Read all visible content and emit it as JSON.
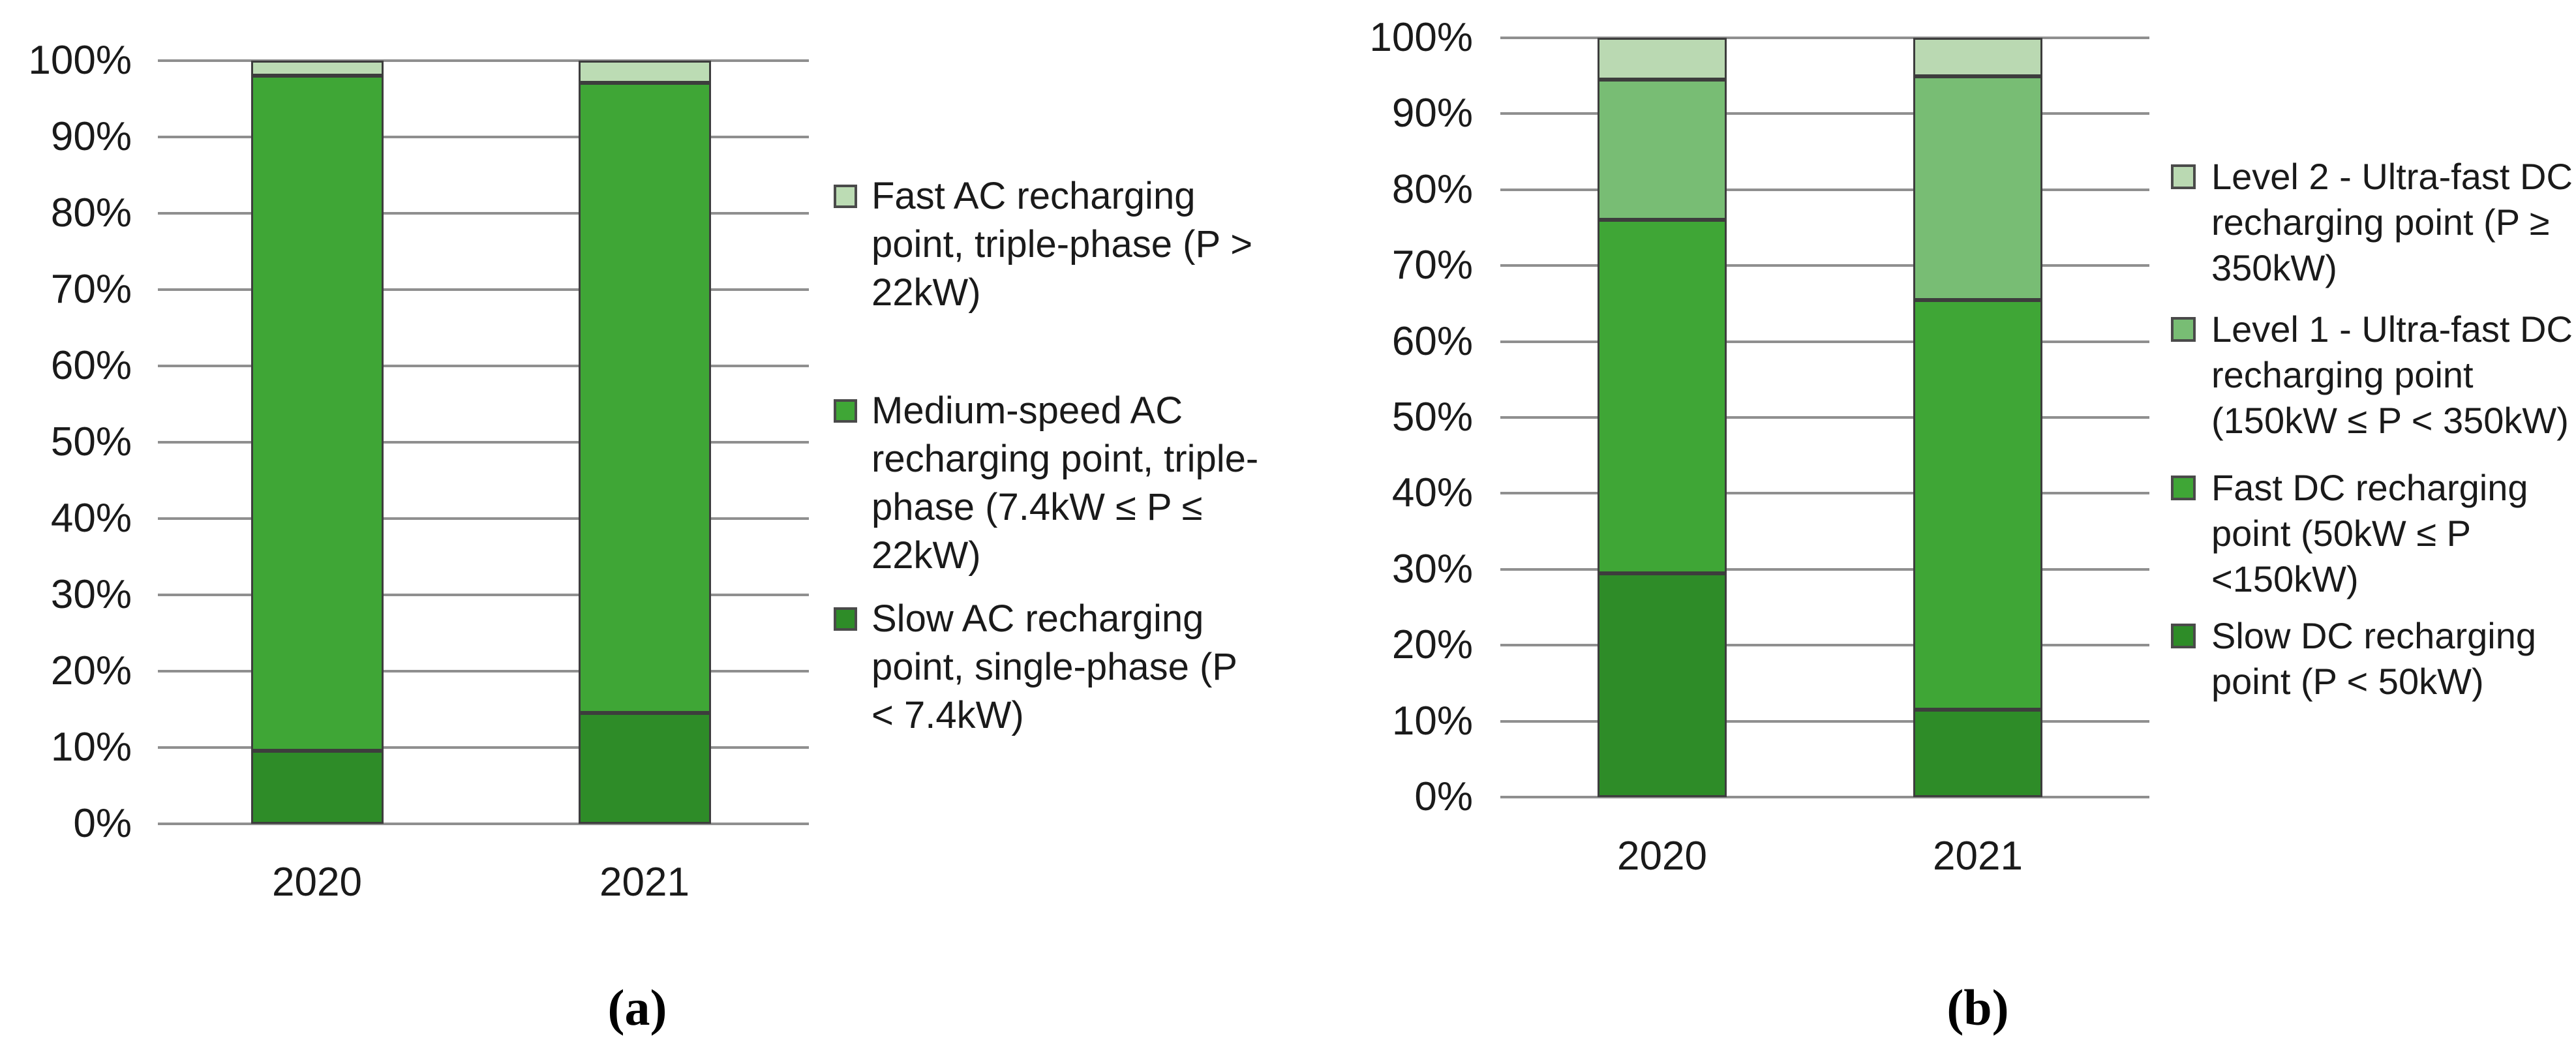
{
  "figure": {
    "background": "#FFFFFF",
    "captions": {
      "a": "(a)",
      "b": "(b)"
    },
    "colors": {
      "gridline": "#8F8F8F",
      "bar_border": "#3D3D3D",
      "text": "#1A1A1A"
    }
  },
  "chart_data": [
    {
      "id": "a",
      "type": "bar",
      "stacked": true,
      "orientation": "vertical",
      "units": "percent",
      "caption": "(a)",
      "categories": [
        "2020",
        "2021"
      ],
      "ylim": [
        0,
        100
      ],
      "yticks": [
        "0%",
        "10%",
        "20%",
        "30%",
        "40%",
        "50%",
        "60%",
        "70%",
        "80%",
        "90%",
        "100%"
      ],
      "grid": true,
      "legend_position": "right",
      "series": [
        {
          "name": "Slow AC recharging point, single-phase (P < 7.4kW)",
          "color": "#2E8C28",
          "values": [
            9.6,
            14.5
          ]
        },
        {
          "name": "Medium-speed AC recharging point, triple-phase (7.4kW ≤ P ≤ 22kW)",
          "color": "#3FA636",
          "values": [
            88.4,
            82.6
          ]
        },
        {
          "name": "Fast AC recharging point, triple-phase (P > 22kW)",
          "color": "#BCDCB4",
          "values": [
            2.0,
            2.9
          ]
        }
      ],
      "legend": [
        {
          "color": "#BCDCB4",
          "label": "Fast AC recharging point, triple-phase (P > 22kW)",
          "lines": [
            "Fast AC recharging",
            "point, triple-phase (P >",
            "22kW)"
          ]
        },
        {
          "color": "#3FA636",
          "label": "Medium-speed AC recharging point, triple-phase (7.4kW ≤ P ≤ 22kW)",
          "lines": [
            "Medium-speed AC",
            "recharging point, triple-",
            "phase (7.4kW ≤ P ≤",
            "22kW)"
          ]
        },
        {
          "color": "#2E8C28",
          "label": "Slow AC recharging point, single-phase (P < 7.4kW)",
          "lines": [
            "Slow AC recharging",
            "point, single-phase (P",
            "< 7.4kW)"
          ]
        }
      ]
    },
    {
      "id": "b",
      "type": "bar",
      "stacked": true,
      "orientation": "vertical",
      "units": "percent",
      "caption": "(b)",
      "categories": [
        "2020",
        "2021"
      ],
      "ylim": [
        0,
        100
      ],
      "yticks": [
        "0%",
        "10%",
        "20%",
        "30%",
        "40%",
        "50%",
        "60%",
        "70%",
        "80%",
        "90%",
        "100%"
      ],
      "grid": true,
      "legend_position": "right",
      "series": [
        {
          "name": "Slow DC recharging point (P < 50kW)",
          "color": "#2E8C28",
          "values": [
            29.5,
            11.5
          ]
        },
        {
          "name": "Fast DC recharging point (50kW ≤ P <150kW)",
          "color": "#3FA636",
          "values": [
            46.5,
            54.0
          ]
        },
        {
          "name": "Level 1 - Ultra-fast DC recharging point (150kW ≤ P < 350kW)",
          "color": "#78BD74",
          "values": [
            18.5,
            29.4
          ]
        },
        {
          "name": "Level 2 - Ultra-fast DC recharging point (P ≥ 350kW)",
          "color": "#BAD9B2",
          "values": [
            5.5,
            5.1
          ]
        }
      ],
      "legend": [
        {
          "color": "#BAD9B2",
          "label": "Level 2 - Ultra-fast DC recharging point (P ≥ 350kW)",
          "lines": [
            "Level 2 - Ultra-fast DC",
            "recharging point (P ≥",
            "350kW)"
          ]
        },
        {
          "color": "#78BD74",
          "label": "Level 1 - Ultra-fast DC recharging point (150kW ≤ P < 350kW)",
          "lines": [
            "Level 1 - Ultra-fast DC",
            "recharging point",
            "(150kW ≤ P < 350kW)"
          ]
        },
        {
          "color": "#3FA636",
          "label": "Fast DC recharging point (50kW ≤ P <150kW)",
          "lines": [
            "Fast DC recharging",
            "point (50kW ≤ P",
            "<150kW)"
          ]
        },
        {
          "color": "#2E8C28",
          "label": "Slow DC recharging point (P < 50kW)",
          "lines": [
            "Slow DC recharging",
            "point (P < 50kW)"
          ]
        }
      ]
    }
  ]
}
